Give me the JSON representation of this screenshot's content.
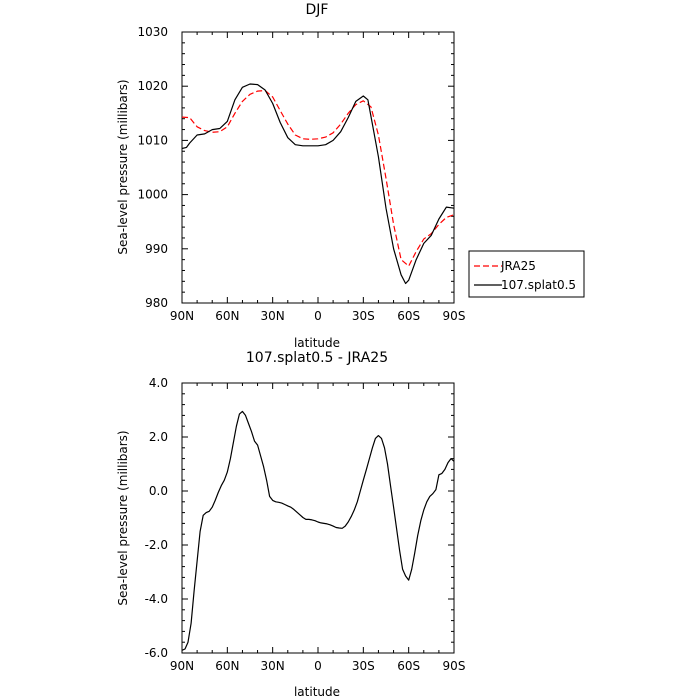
{
  "chart_data": [
    {
      "type": "line",
      "title": "DJF",
      "xlabel": "latitude",
      "ylabel": "Sea-level pressure (millibars)",
      "xlim": [
        90,
        -90
      ],
      "ylim": [
        980,
        1030
      ],
      "x_ticks": [
        {
          "value": 90,
          "label": "90N"
        },
        {
          "value": 60,
          "label": "60N"
        },
        {
          "value": 30,
          "label": "30N"
        },
        {
          "value": 0,
          "label": "0"
        },
        {
          "value": -30,
          "label": "30S"
        },
        {
          "value": -60,
          "label": "60S"
        },
        {
          "value": -90,
          "label": "90S"
        }
      ],
      "y_ticks": [
        {
          "value": 980,
          "label": "980"
        },
        {
          "value": 990,
          "label": "990"
        },
        {
          "value": 1000,
          "label": "1000"
        },
        {
          "value": 1010,
          "label": "1010"
        },
        {
          "value": 1020,
          "label": "1020"
        },
        {
          "value": 1030,
          "label": "1030"
        }
      ],
      "legend_position": "right",
      "series": [
        {
          "name": "JRA25",
          "color": "#ff0000",
          "dash": true,
          "x": [
            90,
            85,
            80,
            75,
            70,
            65,
            60,
            55,
            50,
            45,
            40,
            35,
            30,
            25,
            20,
            15,
            10,
            5,
            0,
            -5,
            -10,
            -15,
            -20,
            -25,
            -30,
            -35,
            -40,
            -45,
            -50,
            -55,
            -60,
            -65,
            -70,
            -75,
            -80,
            -85,
            -90
          ],
          "values": [
            1014.3,
            1014.2,
            1012.5,
            1011.8,
            1011.5,
            1011.6,
            1012.5,
            1015,
            1017.2,
            1018.5,
            1019.1,
            1019.2,
            1018,
            1015.5,
            1013,
            1011,
            1010.3,
            1010.2,
            1010.3,
            1010.6,
            1011.4,
            1013,
            1015,
            1016.6,
            1017.3,
            1016.2,
            1011,
            1003,
            994.5,
            988,
            986.8,
            989.5,
            991.8,
            992.8,
            994.5,
            995.8,
            996.3
          ]
        },
        {
          "name": "107.splat0.5",
          "color": "#000000",
          "dash": false,
          "x": [
            90,
            87,
            85,
            80,
            75,
            70,
            65,
            60,
            55,
            50,
            45,
            40,
            35,
            30,
            25,
            20,
            15,
            10,
            5,
            0,
            -5,
            -10,
            -15,
            -20,
            -25,
            -30,
            -33,
            -35,
            -40,
            -45,
            -50,
            -55,
            -58,
            -60,
            -65,
            -70,
            -75,
            -80,
            -85,
            -90
          ],
          "values": [
            1008.5,
            1008.7,
            1009.5,
            1011,
            1011.2,
            1012,
            1012.2,
            1013.5,
            1017.5,
            1019.8,
            1020.4,
            1020.3,
            1019.3,
            1016.8,
            1013.3,
            1010.5,
            1009.2,
            1009,
            1009,
            1009,
            1009.2,
            1010,
            1011.6,
            1014.2,
            1017.2,
            1018.2,
            1017.5,
            1014.5,
            1007,
            997.5,
            990,
            985.2,
            983.6,
            984.2,
            988,
            991,
            992.5,
            995.5,
            997.7,
            997.5
          ]
        }
      ]
    },
    {
      "type": "line",
      "title": "107.splat0.5 - JRA25",
      "xlabel": "latitude",
      "ylabel": "Sea-level pressure (millibars)",
      "xlim": [
        90,
        -90
      ],
      "ylim": [
        -6,
        4
      ],
      "x_ticks": [
        {
          "value": 90,
          "label": "90N"
        },
        {
          "value": 60,
          "label": "60N"
        },
        {
          "value": 30,
          "label": "30N"
        },
        {
          "value": 0,
          "label": "0"
        },
        {
          "value": -30,
          "label": "30S"
        },
        {
          "value": -60,
          "label": "60S"
        },
        {
          "value": -90,
          "label": "90S"
        }
      ],
      "y_ticks": [
        {
          "value": -6,
          "label": "-6.0"
        },
        {
          "value": -4,
          "label": "-4.0"
        },
        {
          "value": -2,
          "label": "-2.0"
        },
        {
          "value": 0,
          "label": "0.0"
        },
        {
          "value": 2,
          "label": "2.0"
        },
        {
          "value": 4,
          "label": "4.0"
        }
      ],
      "series": [
        {
          "color": "#000000",
          "dash": false,
          "x": [
            90,
            88,
            86,
            84,
            82,
            80,
            78,
            76,
            74,
            72,
            70,
            68,
            66,
            64,
            62,
            60,
            58,
            56,
            54,
            52,
            50,
            48,
            46,
            44,
            42,
            40,
            38,
            36,
            34,
            32,
            30,
            28,
            26,
            24,
            22,
            20,
            18,
            16,
            14,
            12,
            10,
            8,
            6,
            4,
            2,
            0,
            -2,
            -4,
            -6,
            -8,
            -10,
            -12,
            -14,
            -16,
            -18,
            -20,
            -22,
            -24,
            -26,
            -28,
            -30,
            -32,
            -34,
            -36,
            -38,
            -40,
            -42,
            -44,
            -46,
            -48,
            -50,
            -52,
            -54,
            -56,
            -58,
            -60,
            -62,
            -64,
            -66,
            -68,
            -70,
            -72,
            -74,
            -76,
            -78,
            -80,
            -82,
            -84,
            -86,
            -88,
            -90
          ],
          "values": [
            -5.9,
            -5.85,
            -5.6,
            -4.9,
            -3.7,
            -2.6,
            -1.5,
            -0.9,
            -0.8,
            -0.75,
            -0.6,
            -0.35,
            -0.05,
            0.2,
            0.4,
            0.7,
            1.2,
            1.8,
            2.4,
            2.85,
            2.95,
            2.8,
            2.5,
            2.2,
            1.85,
            1.7,
            1.3,
            0.9,
            0.4,
            -0.2,
            -0.35,
            -0.4,
            -0.42,
            -0.45,
            -0.5,
            -0.55,
            -0.6,
            -0.68,
            -0.78,
            -0.88,
            -0.98,
            -1.05,
            -1.05,
            -1.07,
            -1.1,
            -1.15,
            -1.18,
            -1.2,
            -1.22,
            -1.25,
            -1.3,
            -1.35,
            -1.37,
            -1.38,
            -1.3,
            -1.15,
            -0.95,
            -0.7,
            -0.4,
            0.0,
            0.4,
            0.8,
            1.2,
            1.6,
            1.95,
            2.05,
            1.95,
            1.6,
            1.0,
            0.2,
            -0.6,
            -1.4,
            -2.2,
            -2.9,
            -3.15,
            -3.3,
            -2.9,
            -2.3,
            -1.65,
            -1.1,
            -0.7,
            -0.4,
            -0.2,
            -0.1,
            0.05,
            0.6,
            0.65,
            0.8,
            1.05,
            1.2,
            1.1
          ]
        }
      ]
    }
  ]
}
